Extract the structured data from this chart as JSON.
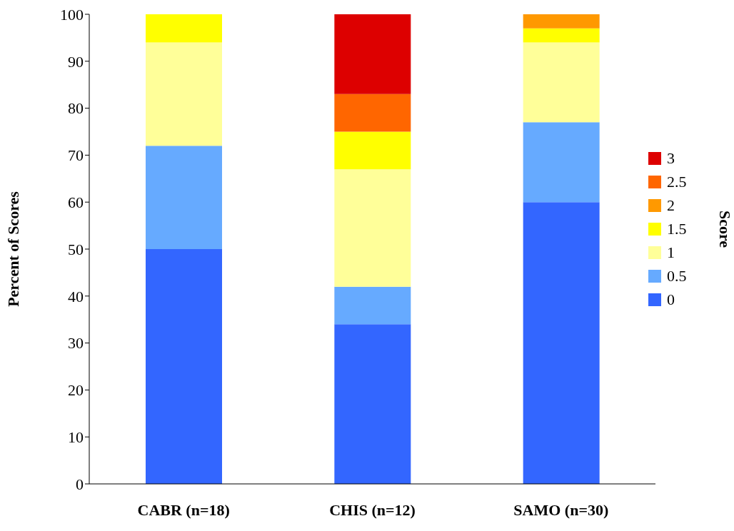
{
  "chart_data": {
    "type": "bar",
    "stacked": true,
    "ylabel": "Percent of Scores",
    "legend_title": "Score",
    "legend": "right",
    "grid": false,
    "categories": [
      "CABR (n=18)",
      "CHIS (n=12)",
      "SAMO (n=30)"
    ],
    "ylim": [
      0,
      100
    ],
    "yticks": [
      0,
      10,
      20,
      30,
      40,
      50,
      60,
      70,
      80,
      90,
      100
    ],
    "series": [
      {
        "name": "0",
        "color": "#3366ff",
        "values": [
          50,
          34,
          60
        ]
      },
      {
        "name": "0.5",
        "color": "#66aaff",
        "values": [
          22,
          8,
          17
        ]
      },
      {
        "name": "1",
        "color": "#ffff99",
        "values": [
          22,
          25,
          17
        ]
      },
      {
        "name": "1.5",
        "color": "#ffff00",
        "values": [
          6,
          8,
          3
        ]
      },
      {
        "name": "2",
        "color": "#ff9900",
        "values": [
          0,
          0,
          3
        ]
      },
      {
        "name": "2.5",
        "color": "#ff6600",
        "values": [
          0,
          8,
          0
        ]
      },
      {
        "name": "3",
        "color": "#dd0000",
        "values": [
          0,
          17,
          0
        ]
      }
    ]
  }
}
